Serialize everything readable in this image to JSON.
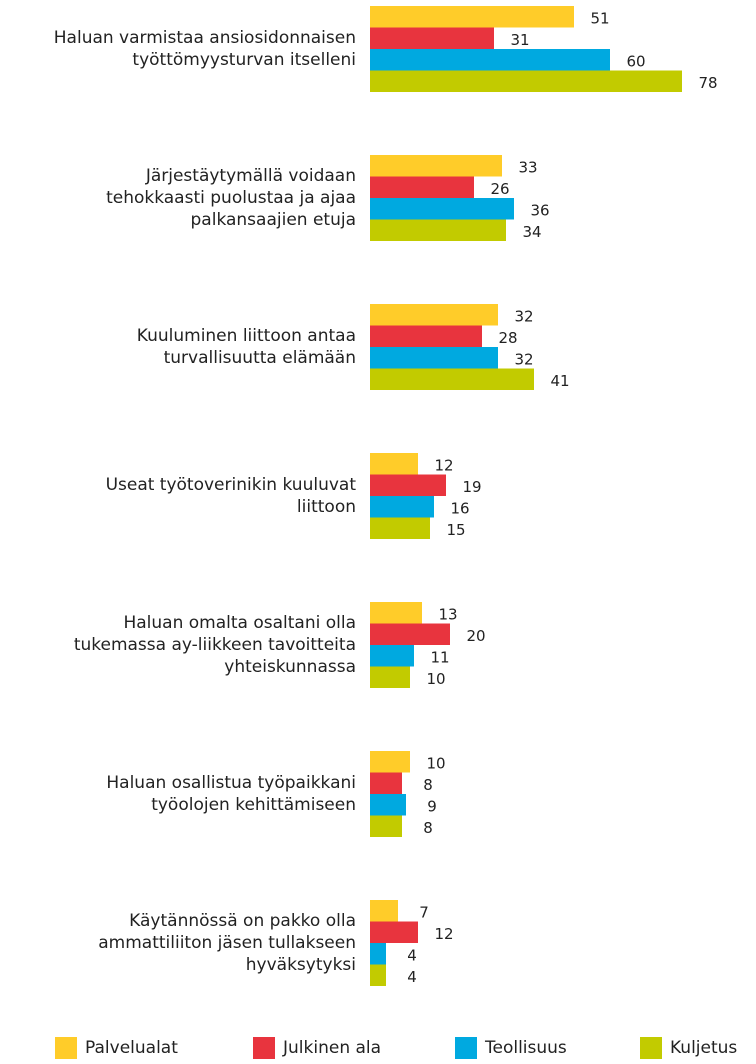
{
  "chart_data": {
    "type": "bar",
    "orientation": "horizontal",
    "categories": [
      "Haluan varmistaa ansiosidonnaisen\ntyöttömyysturvan itselleni",
      "Järjestäytymällä voidaan\ntehokkaasti puolustaa ja ajaa\npalkansaajien etuja",
      "Kuuluminen liittoon antaa\nturvallisuutta elämään",
      "Useat työtoverinikin kuuluvat\nliittoon",
      "Haluan omalta osaltani olla\ntukemassa ay-liikkeen tavoitteita\nyhteiskunnassa",
      "Haluan osallistua työpaikkani\ntyöolojen kehittämiseen",
      "Käytännössä on pakko olla\nammattiliiton jäsen tullakseen\nhyväksytyksi"
    ],
    "series": [
      {
        "name": "Palvelualat",
        "color": "#ffcc29",
        "values": [
          51,
          33,
          32,
          12,
          13,
          10,
          7
        ]
      },
      {
        "name": "Julkinen ala",
        "color": "#e8343e",
        "values": [
          31,
          26,
          28,
          19,
          20,
          8,
          12
        ]
      },
      {
        "name": "Teollisuus",
        "color": "#00a9e0",
        "values": [
          60,
          36,
          32,
          16,
          11,
          9,
          4
        ]
      },
      {
        "name": "Kuljetus",
        "color": "#c2cb00",
        "values": [
          78,
          34,
          41,
          15,
          10,
          8,
          4
        ]
      }
    ],
    "legend": "bottom"
  }
}
